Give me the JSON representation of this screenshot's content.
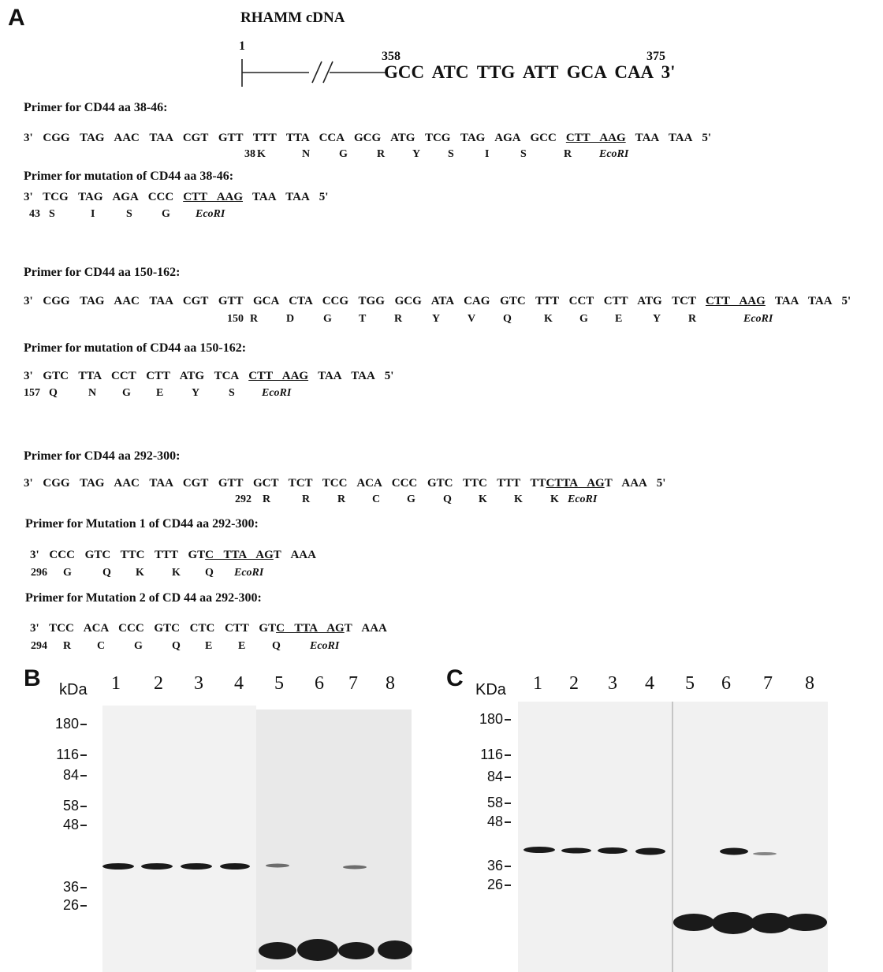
{
  "panel_a": {
    "label": "A",
    "rhamm": {
      "title": "RHAMM cDNA",
      "start": "1",
      "positions": [
        "358",
        "375"
      ],
      "sequence": "GCC ATC TTG ATT GCA CAA 3'"
    },
    "primers": [
      {
        "heading": "Primer for CD44 aa 38-46:",
        "sequence": [
          "3' CGG TAG AAC TAA CGT GTT TTT TTA CCA GCG ATG TCG TAG AGA GCC",
          "CTT AAG",
          "TAA TAA 5'"
        ],
        "residue_start": "38",
        "residues": [
          "K",
          "N",
          "G",
          "R",
          "Y",
          "S",
          "I",
          "S",
          "R"
        ],
        "site_label": "EcoRI"
      },
      {
        "heading": "Primer for mutation of CD44 aa 38-46:",
        "sequence": [
          "3' TCG TAG AGA CCC",
          "CTT AAG",
          "TAA TAA 5'"
        ],
        "residue_start": "43",
        "residues": [
          "S",
          "I",
          "S",
          "G"
        ],
        "site_label": "EcoRI"
      },
      {
        "heading": "Primer for CD44 aa 150-162:",
        "sequence": [
          "3' CGG TAG AAC TAA CGT GTT GCA CTA CCG TGG GCG ATA CAG GTC TTT CCT CTT ATG TCT",
          "CTT AAG",
          "TAA TAA 5'"
        ],
        "residue_start": "150",
        "residues": [
          "R",
          "D",
          "G",
          "T",
          "R",
          "Y",
          "V",
          "Q",
          "K",
          "G",
          "E",
          "Y",
          "R"
        ],
        "site_label": "EcoRI"
      },
      {
        "heading": "Primer for mutation of CD44 aa 150-162:",
        "sequence": [
          "3' GTC TTA CCT CTT ATG TCA",
          "CTT AAG",
          "TAA TAA 5'"
        ],
        "residue_start": "157",
        "residues": [
          "Q",
          "N",
          "G",
          "E",
          "Y",
          "S"
        ],
        "site_label": "EcoRI"
      },
      {
        "heading": "Primer for CD44 aa 292-300:",
        "sequence": [
          "3' CGG TAG AAC TAA CGT GTT GCT TCT TCC ACA CCC GTC TTC TTT TT",
          "CTTA AG",
          "T AAA 5'"
        ],
        "residue_start": "292",
        "residues": [
          "R",
          "R",
          "R",
          "C",
          "G",
          "Q",
          "K",
          "K",
          "K"
        ],
        "site_label": "EcoRI"
      },
      {
        "heading": "Primer for Mutation 1 of CD44 aa 292-300:",
        "sequence": [
          "3' CCC GTC TTC TTT GT",
          "C TTA AG",
          "T AAA"
        ],
        "residue_start": "296",
        "residues": [
          "G",
          "Q",
          "K",
          "K",
          "Q"
        ],
        "site_label": "EcoRI"
      },
      {
        "heading": "Primer for Mutation 2 of CD 44 aa 292-300:",
        "sequence": [
          "3' TCC ACA CCC GTC CTC CTT GT",
          "C TTA AG",
          "T AAA"
        ],
        "residue_start": "294",
        "residues": [
          "R",
          "C",
          "G",
          "Q",
          "E",
          "E",
          "Q"
        ],
        "site_label": "EcoRI"
      }
    ]
  },
  "panel_b": {
    "label": "B",
    "unit": "kDa",
    "lanes": [
      "1",
      "2",
      "3",
      "4",
      "5",
      "6",
      "7",
      "8"
    ],
    "markers": [
      "180",
      "116",
      "84",
      "58",
      "48",
      "36",
      "26"
    ]
  },
  "panel_c": {
    "label": "C",
    "unit": "KDa",
    "lanes": [
      "1",
      "2",
      "3",
      "4",
      "5",
      "6",
      "7",
      "8"
    ],
    "markers": [
      "180",
      "116",
      "84",
      "58",
      "48",
      "36",
      "26"
    ]
  }
}
